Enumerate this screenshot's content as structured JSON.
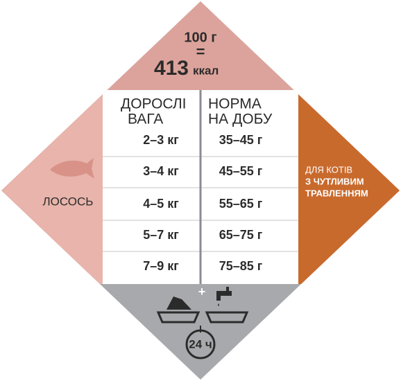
{
  "header": {
    "portion": "100 г",
    "equals": "=",
    "calories": "413",
    "unit": "ккал"
  },
  "table": {
    "columns": [
      [
        "ДОРОСЛІ",
        "ВАГА"
      ],
      [
        "НОРМА",
        "НА ДОБУ"
      ]
    ],
    "rows": [
      [
        "2–3 кг",
        "35–45 г"
      ],
      [
        "3–4 кг",
        "45–55 г"
      ],
      [
        "4–5 кг",
        "55–65 г"
      ],
      [
        "5–7 кг",
        "65–75 г"
      ],
      [
        "7–9 кг",
        "75–85 г"
      ]
    ]
  },
  "flavor": "ЛОСОСЬ",
  "target": [
    "ДЛЯ КОТІВ",
    "З ЧУТЛИВИМ",
    "ТРАВЛЕННЯМ"
  ],
  "serving": {
    "plus": "+",
    "time": "24 ч"
  }
}
